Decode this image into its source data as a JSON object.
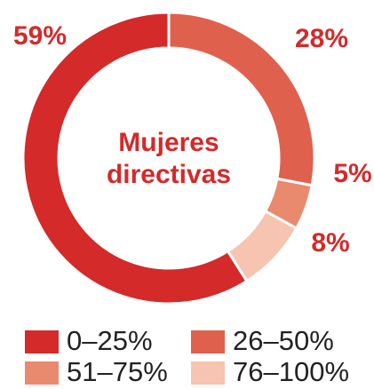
{
  "chart_data": {
    "type": "donut",
    "title": [
      "Mujeres",
      "directivas"
    ],
    "categories": [
      "0–25%",
      "26–50%",
      "51–75%",
      "76–100%"
    ],
    "values": [
      59,
      28,
      5,
      8
    ],
    "value_labels": [
      "59%",
      "28%",
      "5%",
      "8%"
    ],
    "colors": [
      "#d42a2a",
      "#e0604e",
      "#e98a6e",
      "#f6c4b0"
    ],
    "legend": "bottom"
  }
}
